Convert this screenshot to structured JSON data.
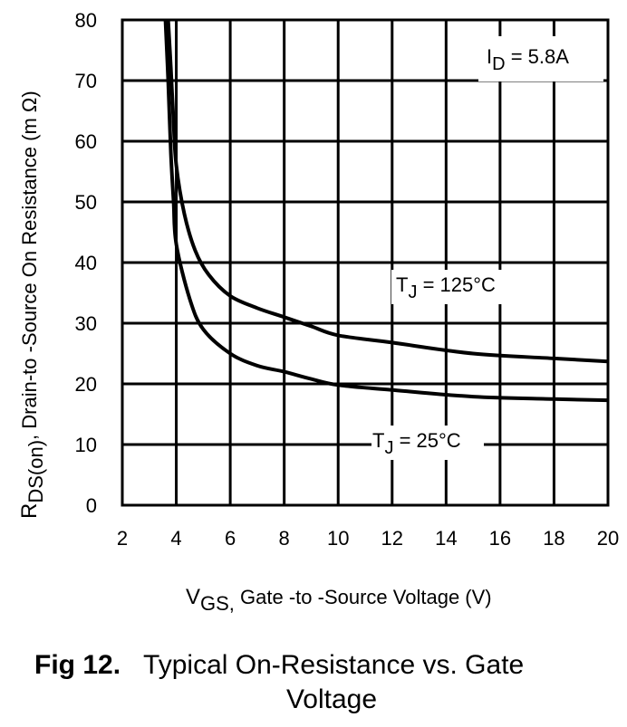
{
  "chart_data": {
    "type": "line",
    "title": "",
    "xlabel_main": "V",
    "xlabel_sub": "GS,",
    "xlabel_rest": " Gate -to -Source Voltage  (V)",
    "ylabel_main": "R",
    "ylabel_sub": "DS(on)",
    "ylabel_rest": ",  Drain-to -Source On Resistance (m Ω)",
    "xlim": [
      2,
      20
    ],
    "ylim": [
      0,
      80
    ],
    "xticks": [
      "2",
      "4",
      "6",
      "8",
      "10",
      "12",
      "14",
      "16",
      "18",
      "20"
    ],
    "yticks": [
      "0",
      "10",
      "20",
      "30",
      "40",
      "50",
      "60",
      "70",
      "80"
    ],
    "grid": true,
    "series": [
      {
        "name": "T_J = 125°C",
        "label_main": "T",
        "label_sub": "J",
        "label_rest": " = 125°C",
        "x": [
          3.7,
          3.8,
          3.9,
          4.0,
          4.3,
          4.7,
          5.2,
          6.0,
          7.0,
          8.0,
          9.0,
          10.0,
          12.0,
          15.0,
          18.0,
          20.0
        ],
        "y": [
          80,
          72,
          63,
          56,
          48,
          42,
          38,
          34.5,
          32.5,
          31,
          29.5,
          28,
          26.8,
          25,
          24.2,
          23.7
        ]
      },
      {
        "name": "T_J = 25°C",
        "label_main": "T",
        "label_sub": "J",
        "label_rest": " = 25°C",
        "x": [
          3.6,
          3.7,
          3.8,
          3.9,
          4.0,
          4.5,
          5.0,
          6.0,
          7.0,
          8.0,
          9.0,
          10.0,
          12.0,
          15.0,
          18.0,
          20.0
        ],
        "y": [
          80,
          70,
          58,
          50,
          43,
          34,
          29,
          25,
          23,
          22,
          20.8,
          19.8,
          19,
          17.9,
          17.5,
          17.3
        ]
      }
    ],
    "annotation_main": "I",
    "annotation_sub": "D",
    "annotation_rest": " = 5.8A"
  },
  "caption": {
    "fig_number": "Fig 12.",
    "line1": "Typical On-Resistance vs. Gate",
    "line2": "Voltage"
  }
}
